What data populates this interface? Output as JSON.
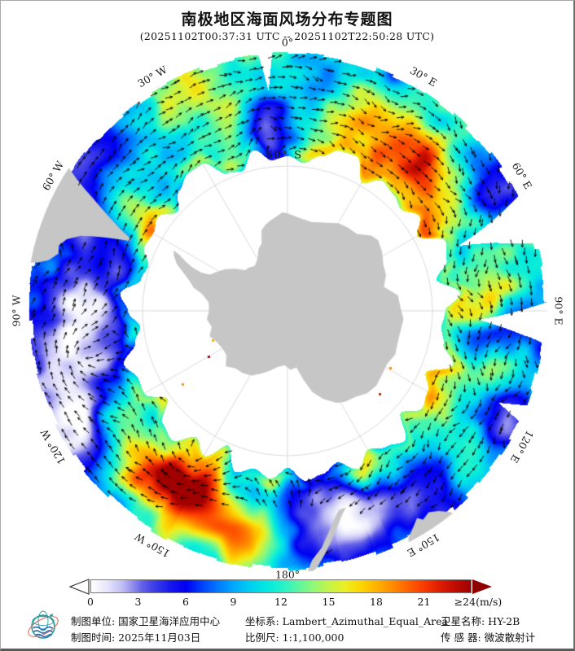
{
  "title": "南极地区海面风场分布专题图",
  "subtitle": "(20251102T00:37:31 UTC  --  20251102T22:50:28 UTC)",
  "map": {
    "lat_label": "60° S",
    "longitude_labels": [
      {
        "text": "0°",
        "deg": 0
      },
      {
        "text": "30° E",
        "deg": 30
      },
      {
        "text": "60° E",
        "deg": 60
      },
      {
        "text": "90° E",
        "deg": 90
      },
      {
        "text": "120° E",
        "deg": 120
      },
      {
        "text": "150° E",
        "deg": 150
      },
      {
        "text": "180°",
        "deg": 180
      },
      {
        "text": "150° W",
        "deg": 210
      },
      {
        "text": "120° W",
        "deg": 240
      },
      {
        "text": "90° W",
        "deg": 270
      },
      {
        "text": "60° W",
        "deg": 300
      },
      {
        "text": "30° W",
        "deg": 330
      }
    ],
    "land_color": "#c6c6c6",
    "grid_color": "#c8c8c8",
    "arrow_color": "#000000"
  },
  "colorbar": {
    "ticks": [
      "0",
      "3",
      "6",
      "9",
      "12",
      "15",
      "18",
      "21"
    ],
    "last_tick": "≥24(m/s)",
    "unit": "m/s",
    "min": 0,
    "max": 24,
    "stops": [
      [
        0,
        "#ffffff"
      ],
      [
        1,
        "#e6e6fb"
      ],
      [
        2,
        "#bfbcf5"
      ],
      [
        2.6,
        "#9490ee"
      ],
      [
        3.2,
        "#6462e9"
      ],
      [
        4,
        "#3c3ce8"
      ],
      [
        5,
        "#1717ee"
      ],
      [
        6,
        "#0000f2"
      ],
      [
        7,
        "#0041fb"
      ],
      [
        8,
        "#0078ff"
      ],
      [
        9,
        "#00a8fd"
      ],
      [
        10,
        "#00cdf2"
      ],
      [
        11,
        "#00e7e2"
      ],
      [
        12,
        "#1ff2cd"
      ],
      [
        13,
        "#55f6a6"
      ],
      [
        14,
        "#8ef878"
      ],
      [
        15,
        "#c2f44b"
      ],
      [
        16,
        "#e9ef24"
      ],
      [
        17,
        "#fcd703"
      ],
      [
        18,
        "#ffb400"
      ],
      [
        19,
        "#ff8d00"
      ],
      [
        20,
        "#ff6300"
      ],
      [
        21,
        "#f93b00"
      ],
      [
        22,
        "#e01d00"
      ],
      [
        23,
        "#c00c00"
      ],
      [
        24,
        "#a00000"
      ]
    ],
    "right_arrow_color": "#8f0000"
  },
  "wind_features": {
    "base_speed": 10.3,
    "warm_blobs": [
      [
        27,
        0.45,
        16,
        0.28,
        8.5
      ],
      [
        40,
        0.28,
        8,
        0.22,
        5
      ],
      [
        55,
        0.3,
        7,
        0.3,
        7.5
      ],
      [
        85,
        0.42,
        7,
        0.28,
        7
      ],
      [
        108,
        0.32,
        7,
        0.3,
        5.5
      ],
      [
        130,
        0.25,
        7,
        0.22,
        4.5
      ],
      [
        152,
        0.18,
        5,
        0.18,
        4
      ],
      [
        184,
        0.06,
        5,
        0.15,
        7
      ],
      [
        188,
        0.7,
        7,
        0.22,
        6.5
      ],
      [
        203,
        0.45,
        14,
        0.3,
        9.5
      ],
      [
        214,
        0.22,
        7,
        0.25,
        8
      ],
      [
        222,
        0.62,
        9,
        0.25,
        7.5
      ],
      [
        238,
        0.3,
        6,
        0.25,
        5
      ],
      [
        262,
        0.04,
        5,
        0.3,
        6
      ],
      [
        303,
        0.12,
        6,
        0.35,
        8.5
      ],
      [
        330,
        0.72,
        9,
        0.22,
        7
      ],
      [
        345,
        0.45,
        6,
        0.18,
        4.5
      ]
    ],
    "cold_blobs": [
      [
        352,
        0.3,
        7,
        0.28,
        -7.5
      ],
      [
        10,
        0.75,
        8,
        0.25,
        -4
      ],
      [
        48,
        0.75,
        5,
        0.2,
        -5
      ],
      [
        62,
        0.85,
        6,
        0.25,
        -7
      ],
      [
        97,
        0.6,
        5,
        0.35,
        -6
      ],
      [
        118,
        0.8,
        6,
        0.28,
        -5.5
      ],
      [
        142,
        0.45,
        6,
        0.3,
        -4
      ],
      [
        160,
        0.55,
        7,
        0.3,
        -5
      ],
      [
        175,
        0.45,
        11,
        0.4,
        -8
      ],
      [
        192,
        0.28,
        7,
        0.28,
        -6
      ],
      [
        213,
        0.1,
        5,
        0.18,
        -7
      ],
      [
        240,
        0.85,
        9,
        0.28,
        -6
      ],
      [
        258,
        0.5,
        20,
        0.55,
        -8.5
      ],
      [
        270,
        0.3,
        8,
        0.35,
        -5
      ],
      [
        297,
        0.8,
        8,
        0.3,
        -7
      ],
      [
        315,
        0.95,
        6,
        0.25,
        -4
      ]
    ],
    "swath_gaps": [
      {
        "mid": 69,
        "halfwidth": 5.5,
        "tip": 0.15
      },
      {
        "mid": 92.5,
        "halfwidth": 4.5,
        "tip": 0.35
      },
      {
        "mid": 355,
        "halfwidth": 1.6,
        "tip": 0.65
      },
      {
        "mid": 113.5,
        "halfwidth": 2.0,
        "tip": 0.75
      }
    ],
    "swirls": [
      [
        258,
        0.5,
        60,
        1.2
      ],
      [
        175,
        0.45,
        55,
        1.1
      ],
      [
        213,
        0.12,
        40,
        1.2
      ],
      [
        352,
        0.3,
        45,
        0.9
      ]
    ],
    "coast_specks": [
      [
        325,
        445,
        "#e03000"
      ],
      [
        259,
        416,
        "#ffb000"
      ],
      [
        254,
        436,
        "#c80000"
      ],
      [
        477,
        450,
        "#ff8c00"
      ],
      [
        464,
        482,
        "#e02800"
      ],
      [
        222,
        470,
        "#ff9800"
      ]
    ]
  },
  "land": {
    "antarctica_lonlat": [
      [
        0,
        -69.8
      ],
      [
        8,
        -70.2
      ],
      [
        15,
        -70.4
      ],
      [
        22,
        -70
      ],
      [
        30,
        -68.8
      ],
      [
        36,
        -69.2
      ],
      [
        42,
        -68
      ],
      [
        48,
        -67
      ],
      [
        52,
        -66.2
      ],
      [
        58,
        -67.2
      ],
      [
        64,
        -67.4
      ],
      [
        70,
        -68.8
      ],
      [
        76,
        -69.2
      ],
      [
        82,
        -67
      ],
      [
        88,
        -66.4
      ],
      [
        94,
        -66.4
      ],
      [
        100,
        -65.8
      ],
      [
        106,
        -66.4
      ],
      [
        112,
        -66.1
      ],
      [
        118,
        -66.5
      ],
      [
        124,
        -66.3
      ],
      [
        130,
        -66.1
      ],
      [
        136,
        -66.4
      ],
      [
        142,
        -66.9
      ],
      [
        148,
        -68.2
      ],
      [
        152,
        -68.6
      ],
      [
        158,
        -70.2
      ],
      [
        163,
        -72.5
      ],
      [
        167,
        -75.5
      ],
      [
        171,
        -77.6
      ],
      [
        177,
        -78.3
      ],
      [
        183,
        -78.4
      ],
      [
        190,
        -78.2
      ],
      [
        197,
        -77.2
      ],
      [
        203,
        -75.8
      ],
      [
        209,
        -74.6
      ],
      [
        216,
        -74.2
      ],
      [
        222,
        -73.6
      ],
      [
        228,
        -73.4
      ],
      [
        234,
        -73.9
      ],
      [
        240,
        -74.6
      ],
      [
        246,
        -74
      ],
      [
        252,
        -73.2
      ],
      [
        258,
        -73.6
      ],
      [
        264,
        -73.5
      ],
      [
        270,
        -73.8
      ],
      [
        276,
        -73.3
      ],
      [
        281,
        -72.1
      ],
      [
        284,
        -70.5
      ],
      [
        287,
        -68.6
      ],
      [
        290,
        -66.8
      ],
      [
        293,
        -65.2
      ],
      [
        296,
        -63.9
      ],
      [
        298,
        -63.2
      ],
      [
        297.5,
        -64.8
      ],
      [
        296,
        -66.5
      ],
      [
        294.5,
        -68.5
      ],
      [
        294,
        -70.5
      ],
      [
        295,
        -72.2
      ],
      [
        299,
        -73.5
      ],
      [
        304,
        -74.8
      ],
      [
        309,
        -76
      ],
      [
        314,
        -77.4
      ],
      [
        318,
        -78.2
      ],
      [
        324,
        -78.4
      ],
      [
        330,
        -77.8
      ],
      [
        335,
        -76.4
      ],
      [
        339,
        -74.8
      ],
      [
        342,
        -73
      ],
      [
        345,
        -71.8
      ],
      [
        349,
        -71
      ],
      [
        353,
        -70.4
      ],
      [
        357,
        -70
      ]
    ],
    "south_america_polar": [
      [
        280,
        340
      ],
      [
        281,
        312
      ],
      [
        282,
        300
      ],
      [
        284,
        290
      ],
      [
        286,
        292
      ],
      [
        288,
        285
      ],
      [
        290,
        270
      ],
      [
        291,
        255
      ],
      [
        292,
        240
      ],
      [
        293,
        225
      ],
      [
        294,
        210
      ],
      [
        295,
        215
      ],
      [
        296,
        228
      ],
      [
        297,
        238
      ],
      [
        298,
        250
      ],
      [
        299,
        262
      ],
      [
        300,
        275
      ],
      [
        301,
        290
      ],
      [
        302,
        305
      ],
      [
        303,
        318
      ],
      [
        304,
        340
      ]
    ],
    "tasmania_polar": [
      [
        140,
        335
      ],
      [
        141,
        318
      ],
      [
        143,
        308
      ],
      [
        145,
        302
      ],
      [
        147,
        306
      ],
      [
        148,
        300
      ],
      [
        150,
        308
      ],
      [
        152,
        316
      ],
      [
        153,
        330
      ]
    ],
    "new_zealand_polar": [
      [
        163.5,
        252
      ],
      [
        165.5,
        262
      ],
      [
        167.5,
        276
      ],
      [
        169.5,
        290
      ],
      [
        171.5,
        304
      ],
      [
        173.5,
        318
      ],
      [
        175,
        324
      ],
      [
        175.6,
        322
      ],
      [
        174.4,
        308
      ],
      [
        171.8,
        294
      ],
      [
        169.8,
        279
      ],
      [
        167.8,
        265
      ],
      [
        165.6,
        253
      ]
    ]
  },
  "footer": {
    "org_label": "制图单位: 国家卫星海洋应用中心",
    "time_label": "制图时间: 2025年11月03日",
    "coord_label": "坐标系: Lambert_Azimuthal_Equal_Area",
    "scale_label": "比例尺: 1:1,100,000",
    "satellite_label": "卫星名称: HY-2B",
    "sensor_label": "传 感 器: 微波散射计"
  }
}
